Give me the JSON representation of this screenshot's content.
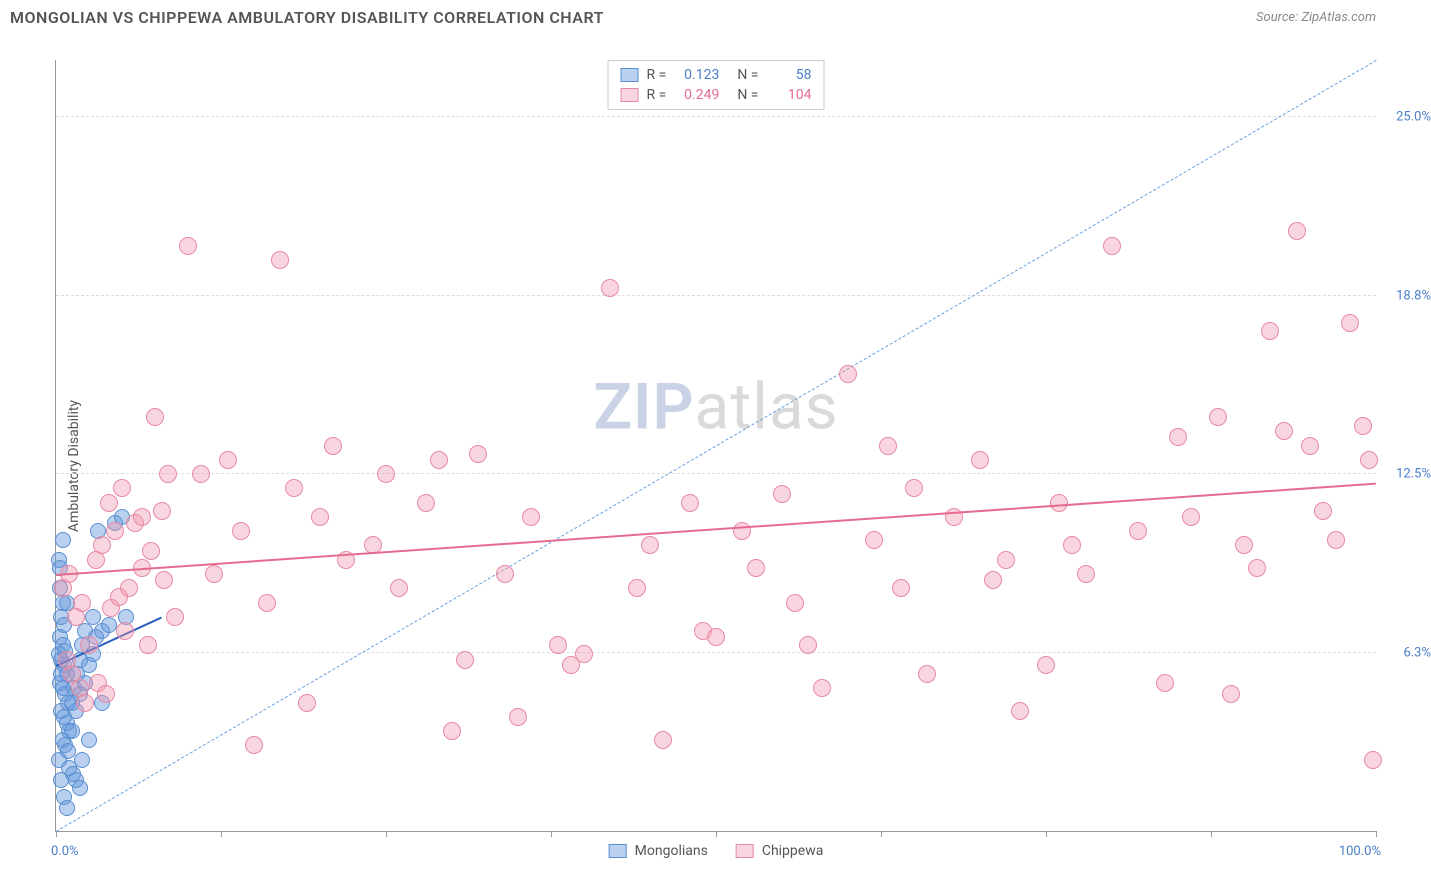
{
  "header": {
    "title": "MONGOLIAN VS CHIPPEWA AMBULATORY DISABILITY CORRELATION CHART",
    "source_prefix": "Source: ",
    "source": "ZipAtlas.com"
  },
  "chart": {
    "type": "scatter",
    "ylabel": "Ambulatory Disability",
    "background_color": "#ffffff",
    "grid_color": "#dddddd",
    "axis_color": "#999999",
    "xlim": [
      0,
      100
    ],
    "ylim": [
      0,
      27
    ],
    "x_ticks": [
      0,
      12.5,
      25,
      37.5,
      50,
      62.5,
      75,
      87.5,
      100
    ],
    "y_gridlines": [
      {
        "value": 6.25,
        "label": "6.3%",
        "color": "#4a7ec9"
      },
      {
        "value": 12.5,
        "label": "12.5%",
        "color": "#4a7ec9"
      },
      {
        "value": 18.75,
        "label": "18.8%",
        "color": "#4a7ec9"
      },
      {
        "value": 25.0,
        "label": "25.0%",
        "color": "#4a7ec9"
      }
    ],
    "x_labels": {
      "left": {
        "text": "0.0%",
        "color": "#4a7ec9"
      },
      "right": {
        "text": "100.0%",
        "color": "#4a7ec9"
      }
    },
    "watermark": {
      "bold": "ZIP",
      "rest": "atlas"
    },
    "series": [
      {
        "name": "Mongolians",
        "fill": "rgba(100,150,220,0.45)",
        "stroke": "#5a8fd0",
        "marker_radius": 8,
        "trend": {
          "x1": 0,
          "y1": 5.8,
          "x2": 8,
          "y2": 7.5,
          "color": "#2a5fbf",
          "width": 2.5,
          "dash": false
        },
        "ideal": {
          "x1": 0,
          "y1": 0,
          "x2": 100,
          "y2": 27,
          "color": "#6a9fe0",
          "width": 1,
          "dash": true
        },
        "points": [
          [
            0.2,
            9.5
          ],
          [
            0.3,
            9.2
          ],
          [
            0.5,
            10.2
          ],
          [
            0.8,
            8.0
          ],
          [
            0.4,
            7.5
          ],
          [
            0.6,
            7.2
          ],
          [
            0.3,
            6.8
          ],
          [
            0.5,
            6.5
          ],
          [
            0.7,
            6.3
          ],
          [
            0.4,
            6.0
          ],
          [
            0.6,
            5.8
          ],
          [
            0.8,
            5.5
          ],
          [
            0.3,
            5.2
          ],
          [
            0.5,
            5.0
          ],
          [
            0.7,
            4.8
          ],
          [
            0.9,
            4.5
          ],
          [
            0.4,
            4.2
          ],
          [
            0.6,
            4.0
          ],
          [
            0.8,
            3.8
          ],
          [
            1.0,
            3.5
          ],
          [
            0.5,
            3.2
          ],
          [
            0.7,
            3.0
          ],
          [
            0.9,
            2.8
          ],
          [
            1.2,
            4.5
          ],
          [
            1.4,
            5.0
          ],
          [
            1.6,
            5.5
          ],
          [
            1.8,
            6.0
          ],
          [
            2.0,
            6.5
          ],
          [
            2.2,
            5.2
          ],
          [
            2.5,
            5.8
          ],
          [
            2.8,
            6.2
          ],
          [
            3.0,
            6.8
          ],
          [
            3.2,
            10.5
          ],
          [
            1.0,
            2.2
          ],
          [
            1.3,
            2.0
          ],
          [
            1.5,
            1.8
          ],
          [
            1.8,
            1.5
          ],
          [
            2.0,
            2.5
          ],
          [
            2.5,
            3.2
          ],
          [
            3.5,
            7.0
          ],
          [
            4.0,
            7.2
          ],
          [
            4.5,
            10.8
          ],
          [
            5.0,
            11.0
          ],
          [
            5.3,
            7.5
          ],
          [
            0.2,
            2.5
          ],
          [
            0.4,
            1.8
          ],
          [
            0.6,
            1.2
          ],
          [
            0.8,
            0.8
          ],
          [
            1.2,
            3.5
          ],
          [
            1.5,
            4.2
          ],
          [
            1.8,
            4.8
          ],
          [
            2.2,
            7.0
          ],
          [
            2.8,
            7.5
          ],
          [
            3.5,
            4.5
          ],
          [
            0.3,
            8.5
          ],
          [
            0.5,
            8.0
          ],
          [
            0.2,
            6.2
          ],
          [
            0.4,
            5.5
          ]
        ]
      },
      {
        "name": "Chippewa",
        "fill": "rgba(240,150,175,0.40)",
        "stroke": "#e88aa5",
        "marker_radius": 9,
        "trend": {
          "x1": 0,
          "y1": 9.0,
          "x2": 100,
          "y2": 12.2,
          "color": "#e56b8f",
          "width": 2.5,
          "dash": false
        },
        "points": [
          [
            0.5,
            8.5
          ],
          [
            1.0,
            9.0
          ],
          [
            1.5,
            7.5
          ],
          [
            2.0,
            8.0
          ],
          [
            2.5,
            6.5
          ],
          [
            3.0,
            9.5
          ],
          [
            3.5,
            10.0
          ],
          [
            4.0,
            11.5
          ],
          [
            4.5,
            10.5
          ],
          [
            5.0,
            12.0
          ],
          [
            5.5,
            8.5
          ],
          [
            6.0,
            10.8
          ],
          [
            6.5,
            9.2
          ],
          [
            7.0,
            6.5
          ],
          [
            7.5,
            14.5
          ],
          [
            8.0,
            11.2
          ],
          [
            8.5,
            12.5
          ],
          [
            9.0,
            7.5
          ],
          [
            10.0,
            20.5
          ],
          [
            11.0,
            12.5
          ],
          [
            12.0,
            9.0
          ],
          [
            13.0,
            13.0
          ],
          [
            14.0,
            10.5
          ],
          [
            15.0,
            3.0
          ],
          [
            16.0,
            8.0
          ],
          [
            17.0,
            20.0
          ],
          [
            18.0,
            12.0
          ],
          [
            19.0,
            4.5
          ],
          [
            20.0,
            11.0
          ],
          [
            21.0,
            13.5
          ],
          [
            22.0,
            9.5
          ],
          [
            24.0,
            10.0
          ],
          [
            25.0,
            12.5
          ],
          [
            26.0,
            8.5
          ],
          [
            28.0,
            11.5
          ],
          [
            29.0,
            13.0
          ],
          [
            30.0,
            3.5
          ],
          [
            31.0,
            6.0
          ],
          [
            32.0,
            13.2
          ],
          [
            34.0,
            9.0
          ],
          [
            35.0,
            4.0
          ],
          [
            36.0,
            11.0
          ],
          [
            38.0,
            6.5
          ],
          [
            39.0,
            5.8
          ],
          [
            40.0,
            6.2
          ],
          [
            42.0,
            19.0
          ],
          [
            44.0,
            8.5
          ],
          [
            45.0,
            10.0
          ],
          [
            46.0,
            3.2
          ],
          [
            48.0,
            11.5
          ],
          [
            49.0,
            7.0
          ],
          [
            50.0,
            6.8
          ],
          [
            52.0,
            10.5
          ],
          [
            53.0,
            9.2
          ],
          [
            55.0,
            11.8
          ],
          [
            56.0,
            8.0
          ],
          [
            57.0,
            6.5
          ],
          [
            58.0,
            5.0
          ],
          [
            60.0,
            16.0
          ],
          [
            62.0,
            10.2
          ],
          [
            63.0,
            13.5
          ],
          [
            64.0,
            8.5
          ],
          [
            65.0,
            12.0
          ],
          [
            66.0,
            5.5
          ],
          [
            68.0,
            11.0
          ],
          [
            70.0,
            13.0
          ],
          [
            71.0,
            8.8
          ],
          [
            72.0,
            9.5
          ],
          [
            73.0,
            4.2
          ],
          [
            75.0,
            5.8
          ],
          [
            76.0,
            11.5
          ],
          [
            77.0,
            10.0
          ],
          [
            78.0,
            9.0
          ],
          [
            80.0,
            20.5
          ],
          [
            82.0,
            10.5
          ],
          [
            84.0,
            5.2
          ],
          [
            85.0,
            13.8
          ],
          [
            86.0,
            11.0
          ],
          [
            88.0,
            14.5
          ],
          [
            89.0,
            4.8
          ],
          [
            90.0,
            10.0
          ],
          [
            91.0,
            9.2
          ],
          [
            92.0,
            17.5
          ],
          [
            93.0,
            14.0
          ],
          [
            94.0,
            21.0
          ],
          [
            95.0,
            13.5
          ],
          [
            96.0,
            11.2
          ],
          [
            97.0,
            10.2
          ],
          [
            98.0,
            17.8
          ],
          [
            99.0,
            14.2
          ],
          [
            99.5,
            13.0
          ],
          [
            99.8,
            2.5
          ],
          [
            0.8,
            6.0
          ],
          [
            1.2,
            5.5
          ],
          [
            1.8,
            5.0
          ],
          [
            2.2,
            4.5
          ],
          [
            3.2,
            5.2
          ],
          [
            3.8,
            4.8
          ],
          [
            4.2,
            7.8
          ],
          [
            4.8,
            8.2
          ],
          [
            5.2,
            7.0
          ],
          [
            6.5,
            11.0
          ],
          [
            7.2,
            9.8
          ],
          [
            8.2,
            8.8
          ]
        ]
      }
    ]
  },
  "legend_top": {
    "rows": [
      {
        "swatch_fill": "rgba(100,150,220,0.45)",
        "swatch_stroke": "#5a8fd0",
        "r_label": "R =",
        "r_value": "0.123",
        "r_color": "#4a7ec9",
        "n_label": "N =",
        "n_value": "58",
        "n_color": "#4a7ec9"
      },
      {
        "swatch_fill": "rgba(240,150,175,0.40)",
        "swatch_stroke": "#e88aa5",
        "r_label": "R =",
        "r_value": "0.249",
        "r_color": "#e56b8f",
        "n_label": "N =",
        "n_value": "104",
        "n_color": "#e56b8f"
      }
    ]
  },
  "legend_bottom": {
    "items": [
      {
        "swatch_fill": "rgba(100,150,220,0.45)",
        "swatch_stroke": "#5a8fd0",
        "label": "Mongolians"
      },
      {
        "swatch_fill": "rgba(240,150,175,0.40)",
        "swatch_stroke": "#e88aa5",
        "label": "Chippewa"
      }
    ]
  }
}
